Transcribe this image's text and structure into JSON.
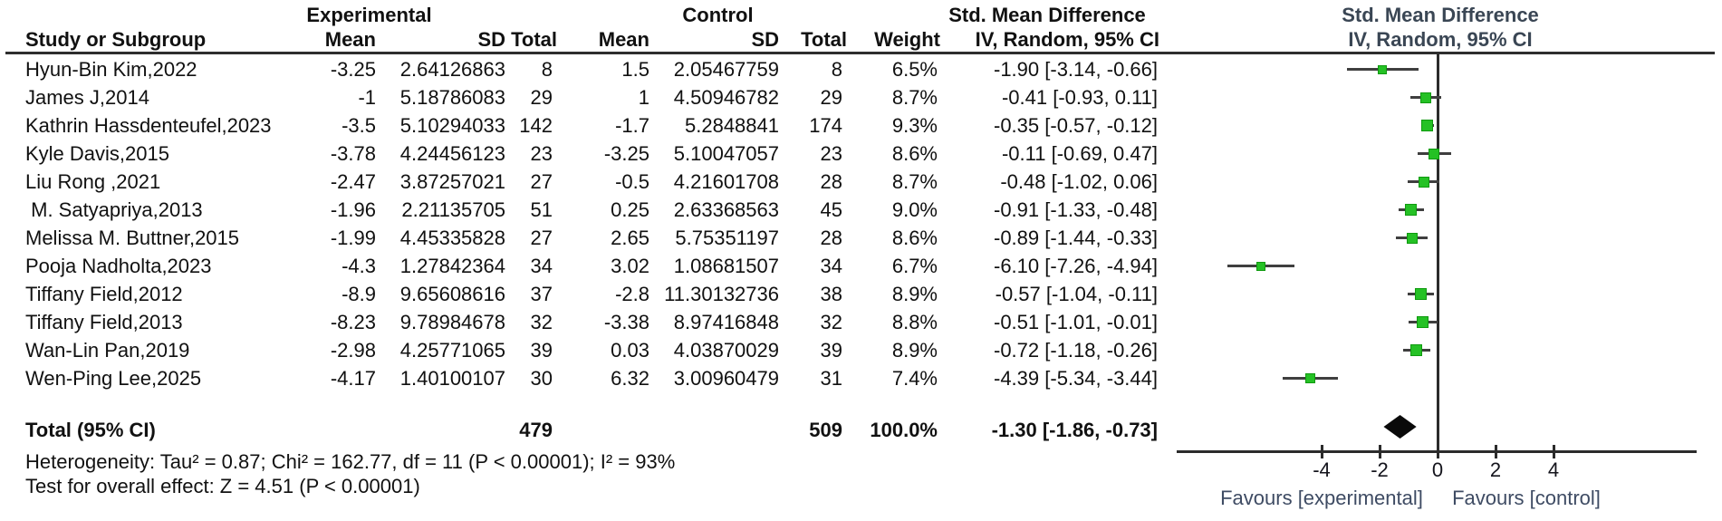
{
  "table": {
    "group_headers": {
      "experimental": "Experimental",
      "control": "Control",
      "smd": "Std. Mean Difference"
    },
    "col_headers": {
      "study": "Study or Subgroup",
      "mean": "Mean",
      "sd": "SD",
      "total": "Total",
      "mean2": "Mean",
      "sd2": "SD",
      "total2": "Total",
      "weight": "Weight",
      "ci": "IV, Random, 95% CI"
    }
  },
  "plot": {
    "header_line1": "Std. Mean Difference",
    "header_line2": "IV, Random, 95% CI",
    "marker_color": "#25c125",
    "diamond_color": "#0a0a0a"
  },
  "footer": {
    "heterogeneity": "Heterogeneity: Tau² = 0.87; Chi² = 162.77, df = 11 (P < 0.00001); I² = 93%",
    "overall_effect": "Test for overall effect: Z = 4.51 (P < 0.00001)"
  },
  "chart_data": {
    "type": "scatter",
    "subtype": "forest-plot",
    "title": "Std. Mean Difference",
    "method": "IV, Random, 95% CI",
    "x_axis": {
      "ticks": [
        -4,
        -2,
        0,
        2,
        4
      ],
      "range_shown": [
        -9,
        9
      ],
      "label_left": "Favours [experimental]",
      "label_right": "Favours [control]"
    },
    "studies": [
      {
        "name": "Hyun-Bin Kim,2022",
        "exp_mean": "-3.25",
        "exp_sd": "2.64126863",
        "exp_total": "8",
        "ctrl_mean": "1.5",
        "ctrl_sd": "2.05467759",
        "ctrl_total": "8",
        "weight": "6.5%",
        "weight_pct": 6.5,
        "ci_text": "-1.90 [-3.14, -0.66]",
        "est": -1.9,
        "lo": -3.14,
        "hi": -0.66
      },
      {
        "name": "James J,2014",
        "exp_mean": "-1",
        "exp_sd": "5.18786083",
        "exp_total": "29",
        "ctrl_mean": "1",
        "ctrl_sd": "4.50946782",
        "ctrl_total": "29",
        "weight": "8.7%",
        "weight_pct": 8.7,
        "ci_text": "-0.41 [-0.93, 0.11]",
        "est": -0.41,
        "lo": -0.93,
        "hi": 0.11
      },
      {
        "name": "Kathrin Hassdenteufel,2023",
        "exp_mean": "-3.5",
        "exp_sd": "5.10294033",
        "exp_total": "142",
        "ctrl_mean": "-1.7",
        "ctrl_sd": "5.2848841",
        "ctrl_total": "174",
        "weight": "9.3%",
        "weight_pct": 9.3,
        "ci_text": "-0.35 [-0.57, -0.12]",
        "est": -0.35,
        "lo": -0.57,
        "hi": -0.12
      },
      {
        "name": "Kyle Davis,2015",
        "exp_mean": "-3.78",
        "exp_sd": "4.24456123",
        "exp_total": "23",
        "ctrl_mean": "-3.25",
        "ctrl_sd": "5.10047057",
        "ctrl_total": "23",
        "weight": "8.6%",
        "weight_pct": 8.6,
        "ci_text": "-0.11 [-0.69, 0.47]",
        "est": -0.11,
        "lo": -0.69,
        "hi": 0.47
      },
      {
        "name": "Liu Rong ,2021",
        "exp_mean": "-2.47",
        "exp_sd": "3.87257021",
        "exp_total": "27",
        "ctrl_mean": "-0.5",
        "ctrl_sd": "4.21601708",
        "ctrl_total": "28",
        "weight": "8.7%",
        "weight_pct": 8.7,
        "ci_text": "-0.48 [-1.02, 0.06]",
        "est": -0.48,
        "lo": -1.02,
        "hi": 0.06
      },
      {
        "name": " M. Satyapriya,2013",
        "exp_mean": "-1.96",
        "exp_sd": "2.21135705",
        "exp_total": "51",
        "ctrl_mean": "0.25",
        "ctrl_sd": "2.63368563",
        "ctrl_total": "45",
        "weight": "9.0%",
        "weight_pct": 9.0,
        "ci_text": "-0.91 [-1.33, -0.48]",
        "est": -0.91,
        "lo": -1.33,
        "hi": -0.48
      },
      {
        "name": "Melissa M. Buttner,2015",
        "exp_mean": "-1.99",
        "exp_sd": "4.45335828",
        "exp_total": "27",
        "ctrl_mean": "2.65",
        "ctrl_sd": "5.75351197",
        "ctrl_total": "28",
        "weight": "8.6%",
        "weight_pct": 8.6,
        "ci_text": "-0.89 [-1.44, -0.33]",
        "est": -0.89,
        "lo": -1.44,
        "hi": -0.33
      },
      {
        "name": "Pooja Nadholta,2023",
        "exp_mean": "-4.3",
        "exp_sd": "1.27842364",
        "exp_total": "34",
        "ctrl_mean": "3.02",
        "ctrl_sd": "1.08681507",
        "ctrl_total": "34",
        "weight": "6.7%",
        "weight_pct": 6.7,
        "ci_text": "-6.10 [-7.26, -4.94]",
        "est": -6.1,
        "lo": -7.26,
        "hi": -4.94
      },
      {
        "name": "Tiffany Field,2012",
        "exp_mean": "-8.9",
        "exp_sd": "9.65608616",
        "exp_total": "37",
        "ctrl_mean": "-2.8",
        "ctrl_sd": "11.30132736",
        "ctrl_total": "38",
        "weight": "8.9%",
        "weight_pct": 8.9,
        "ci_text": "-0.57 [-1.04, -0.11]",
        "est": -0.57,
        "lo": -1.04,
        "hi": -0.11
      },
      {
        "name": "Tiffany Field,2013",
        "exp_mean": "-8.23",
        "exp_sd": "9.78984678",
        "exp_total": "32",
        "ctrl_mean": "-3.38",
        "ctrl_sd": "8.97416848",
        "ctrl_total": "32",
        "weight": "8.8%",
        "weight_pct": 8.8,
        "ci_text": "-0.51 [-1.01, -0.01]",
        "est": -0.51,
        "lo": -1.01,
        "hi": -0.01
      },
      {
        "name": "Wan-Lin Pan,2019",
        "exp_mean": "-2.98",
        "exp_sd": "4.25771065",
        "exp_total": "39",
        "ctrl_mean": "0.03",
        "ctrl_sd": "4.03870029",
        "ctrl_total": "39",
        "weight": "8.9%",
        "weight_pct": 8.9,
        "ci_text": "-0.72 [-1.18, -0.26]",
        "est": -0.72,
        "lo": -1.18,
        "hi": -0.26
      },
      {
        "name": "Wen-Ping Lee,2025",
        "exp_mean": "-4.17",
        "exp_sd": "1.40100107",
        "exp_total": "30",
        "ctrl_mean": "6.32",
        "ctrl_sd": "3.00960479",
        "ctrl_total": "31",
        "weight": "7.4%",
        "weight_pct": 7.4,
        "ci_text": "-4.39 [-5.34, -3.44]",
        "est": -4.39,
        "lo": -5.34,
        "hi": -3.44
      }
    ],
    "total": {
      "label": "Total (95% CI)",
      "exp_total": "479",
      "ctrl_total": "509",
      "weight": "100.0%",
      "ci_text": "-1.30 [-1.86, -0.73]",
      "est": -1.3,
      "lo": -1.86,
      "hi": -0.73
    }
  }
}
